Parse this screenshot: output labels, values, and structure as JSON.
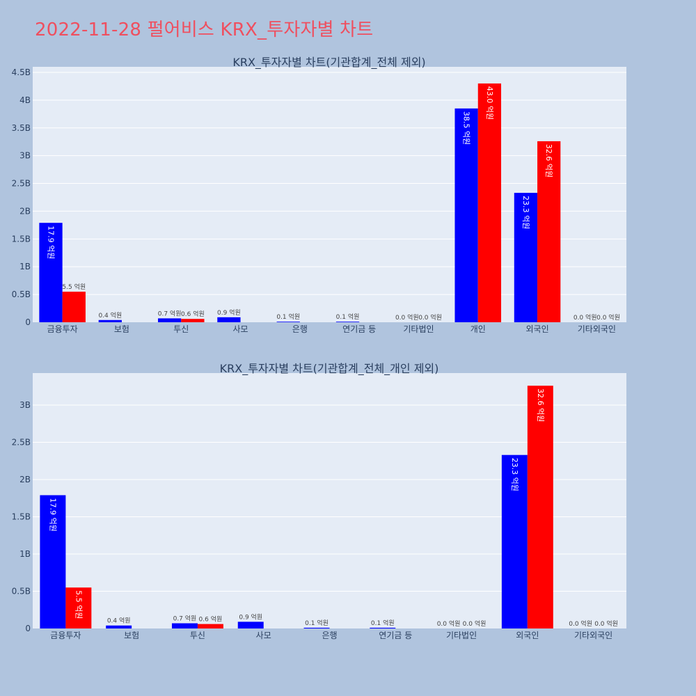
{
  "title": "2022-11-28 펄어비스 KRX_투자자별 차트",
  "colors": {
    "series_a": "#0000ff",
    "series_b": "#ff0000"
  },
  "chart_data": [
    {
      "type": "bar",
      "title": "KRX_투자자별 차트(기관합계_전체 제외)",
      "categories": [
        "금융투자",
        "보험",
        "투신",
        "사모",
        "은행",
        "연기금 등",
        "기타법인",
        "개인",
        "외국인",
        "기타외국인"
      ],
      "yticks": [
        "0",
        "0.5B",
        "1B",
        "1.5B",
        "2B",
        "2.5B",
        "3B",
        "3.5B",
        "4B",
        "4.5B"
      ],
      "ylim": [
        0,
        4600000000
      ],
      "series": [
        {
          "values": [
            1790000000,
            40000000,
            70000000,
            90000000,
            10000000,
            10000000,
            0,
            3850000000,
            2330000000,
            0
          ],
          "labels": [
            "17.9 억원",
            "0.4 억원",
            "0.7 억원",
            "0.9 억원",
            "0.1 억원",
            "0.1 억원",
            "0.0 억원",
            "38.5 억원",
            "23.3 억원",
            "0.0 억원"
          ]
        },
        {
          "values": [
            550000000,
            0,
            60000000,
            0,
            0,
            0,
            0,
            4300000000,
            3260000000,
            0
          ],
          "labels": [
            "5.5 억원",
            "",
            "0.6 억원",
            "",
            "",
            "",
            "0.0 억원",
            "43.0 억원",
            "32.6 억원",
            "0.0 억원"
          ]
        }
      ]
    },
    {
      "type": "bar",
      "title": "KRX_투자자별 차트(기관합계_전체_개인 제외)",
      "categories": [
        "금융투자",
        "보험",
        "투신",
        "사모",
        "은행",
        "연기금 등",
        "기타법인",
        "외국인",
        "기타외국인"
      ],
      "yticks": [
        "0",
        "0.5B",
        "1B",
        "1.5B",
        "2B",
        "2.5B",
        "3B"
      ],
      "ylim": [
        0,
        3430000000
      ],
      "series": [
        {
          "values": [
            1790000000,
            40000000,
            70000000,
            90000000,
            10000000,
            10000000,
            0,
            2330000000,
            0
          ],
          "labels": [
            "17.9 억원",
            "0.4 억원",
            "0.7 억원",
            "0.9 억원",
            "0.1 억원",
            "0.1 억원",
            "0.0 억원",
            "23.3 억원",
            "0.0 억원"
          ]
        },
        {
          "values": [
            550000000,
            0,
            60000000,
            0,
            0,
            0,
            0,
            3260000000,
            0
          ],
          "labels": [
            "5.5 억원",
            "",
            "0.6 억원",
            "",
            "",
            "",
            "0.0 억원",
            "32.6 억원",
            "0.0 억원"
          ]
        }
      ]
    }
  ]
}
